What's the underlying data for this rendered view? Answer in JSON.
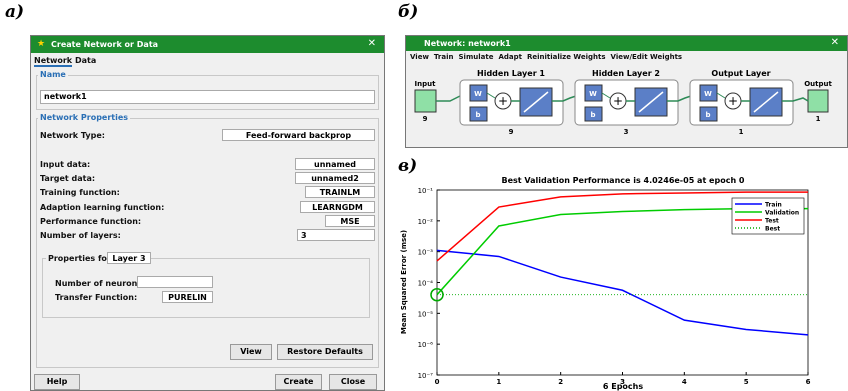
{
  "panel_labels": {
    "a": "а)",
    "b": "б)",
    "c": "в)"
  },
  "create_dialog": {
    "title": "Create Network or Data",
    "tabs": [
      "Network",
      "Data"
    ],
    "name_group": "Name",
    "name_value": "network1",
    "props_group": "Network Properties",
    "network_type_label": "Network Type:",
    "network_type_value": "Feed-forward backprop",
    "fields": [
      {
        "label": "Input data:",
        "value": "unnamed"
      },
      {
        "label": "Target data:",
        "value": "unnamed2"
      },
      {
        "label": "Training function:",
        "value": "TRAINLM"
      },
      {
        "label": "Adaption learning function:",
        "value": "LEARNGDM"
      },
      {
        "label": "Performance function:",
        "value": "MSE"
      },
      {
        "label": "Number of layers:",
        "value": 3
      }
    ],
    "properties_for_label": "Properties for:",
    "properties_for_value": "Layer 3",
    "neurons_label": "Number of neurons:",
    "transfer_label": "Transfer Function:",
    "transfer_value": "PURELIN",
    "buttons": [
      "View",
      "Restore Defaults",
      "Help",
      "Create",
      "Close"
    ]
  },
  "network_window": {
    "title": "Network: network1",
    "menu": [
      "View",
      "Train",
      "Simulate",
      "Adapt",
      "Reinitialize Weights",
      "View/Edit Weights"
    ],
    "input_label": "Input",
    "input_size": 9,
    "output_label": "Output",
    "output_size": 1,
    "weight_label": "W",
    "bias_label": "b",
    "layers": [
      {
        "title": "Hidden Layer 1",
        "size": 9
      },
      {
        "title": "Hidden Layer 2",
        "size": 3
      },
      {
        "title": "Output Layer",
        "size": 1
      }
    ]
  },
  "chart_data": {
    "type": "line",
    "title": "Best Validation Performance is 4.0246e-05 at epoch 0",
    "xlabel": "6 Epochs",
    "ylabel": "Mean Squared Error  (mse)",
    "x": [
      0,
      1,
      2,
      3,
      4,
      5,
      6
    ],
    "xlim": [
      0,
      6
    ],
    "xticks": [
      0,
      1,
      2,
      3,
      4,
      5,
      6
    ],
    "ylim": [
      1e-07,
      0.1
    ],
    "log_y": true,
    "yticks": [
      {
        "value": 1e-07,
        "label": "10⁻⁷"
      },
      {
        "value": 1e-06,
        "label": "10⁻⁶"
      },
      {
        "value": 1e-05,
        "label": "10⁻⁵"
      },
      {
        "value": 0.0001,
        "label": "10⁻⁴"
      },
      {
        "value": 0.001,
        "label": "10⁻³"
      },
      {
        "value": 0.01,
        "label": "10⁻²"
      },
      {
        "value": 0.1,
        "label": "10⁻¹"
      }
    ],
    "legend": "upper right",
    "series": [
      {
        "name": "Train",
        "color": "#0000ff",
        "values": [
          0.0011,
          0.0007,
          0.00015,
          5.6e-05,
          6e-06,
          3e-06,
          2e-06
        ]
      },
      {
        "name": "Validation",
        "color": "#00cc00",
        "values": [
          4.0246e-05,
          0.0068,
          0.016,
          0.02,
          0.023,
          0.025,
          0.025
        ]
      },
      {
        "name": "Test",
        "color": "#ff0000",
        "values": [
          0.0005,
          0.028,
          0.06,
          0.075,
          0.08,
          0.085,
          0.085
        ]
      }
    ],
    "best": {
      "name": "Best",
      "color": "#00aa00",
      "value": 4.0246e-05,
      "epoch": 0
    }
  }
}
